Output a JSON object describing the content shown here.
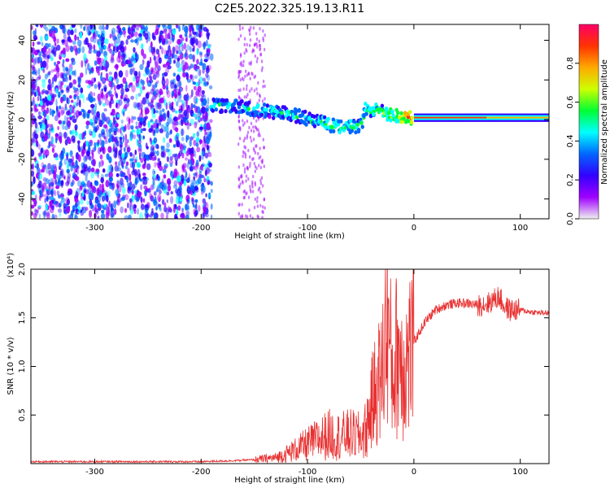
{
  "title": "C2E5.2022.325.19.13.R11",
  "chart_data": [
    {
      "type": "heatmap",
      "xlabel": "Height of straight line (km)",
      "ylabel": "Frequency (Hz)",
      "xlim": [
        -360,
        127
      ],
      "ylim": [
        -50,
        48
      ],
      "xticks": [
        -300,
        -200,
        -100,
        0,
        100
      ],
      "yticks": [
        -40,
        -20,
        0,
        20,
        40
      ],
      "colorbar": {
        "label": "Normalized spectral amplitude",
        "range": [
          0,
          1
        ],
        "ticks": [
          "0.0",
          "0.2",
          "0.4",
          "0.6",
          "0.8"
        ],
        "tick_values": [
          0,
          0.2,
          0.4,
          0.6,
          0.8
        ],
        "colormap": [
          "#f0f0f0",
          "#9f00ff",
          "#3300ff",
          "#0066ff",
          "#00ffff",
          "#00ff33",
          "#ccff00",
          "#ffaa00",
          "#ff3300",
          "#ff0066"
        ]
      },
      "noise_region": {
        "x": [
          -360,
          -190
        ],
        "level": 0.35
      },
      "signal_trace": [
        {
          "x": -190,
          "freq": 7,
          "amplitude": 0.45
        },
        {
          "x": -170,
          "freq": 7,
          "amplitude": 0.45
        },
        {
          "x": -150,
          "freq": 5,
          "amplitude": 0.45
        },
        {
          "x": -130,
          "freq": 4,
          "amplitude": 0.45
        },
        {
          "x": -110,
          "freq": 2,
          "amplitude": 0.45
        },
        {
          "x": -90,
          "freq": -1,
          "amplitude": 0.45
        },
        {
          "x": -70,
          "freq": -4,
          "amplitude": 0.5
        },
        {
          "x": -50,
          "freq": -3,
          "amplitude": 0.5
        },
        {
          "x": -45,
          "freq": 5,
          "amplitude": 0.5
        },
        {
          "x": -30,
          "freq": 4,
          "amplitude": 0.55
        },
        {
          "x": -20,
          "freq": 2,
          "amplitude": 0.6
        },
        {
          "x": 0,
          "freq": 1,
          "amplitude": 0.85
        },
        {
          "x": 50,
          "freq": 1,
          "amplitude": 0.85
        },
        {
          "x": 100,
          "freq": 1,
          "amplitude": 0.8
        },
        {
          "x": 127,
          "freq": 1,
          "amplitude": 0.8
        }
      ]
    },
    {
      "type": "line",
      "xlabel": "Height of straight line (km)",
      "ylabel": "SNR (10 * v/v)",
      "y_multiplier": "(x10⁴)",
      "xlim": [
        -360,
        127
      ],
      "ylim": [
        0,
        2.0
      ],
      "xticks": [
        -300,
        -200,
        -100,
        0,
        100
      ],
      "yticks": [
        0.5,
        1.0,
        1.5,
        2.0
      ],
      "ytick_labels": [
        "0.5",
        "1.0",
        "1.5",
        "2.0"
      ],
      "line_color": "#e83030",
      "series": [
        {
          "x": [
            -360,
            -300,
            -250,
            -200,
            -170,
            -150,
            -130,
            -120,
            -110,
            -100,
            -90,
            -80,
            -70,
            -60,
            -50,
            -45,
            -40,
            -35,
            -30,
            -27,
            -25,
            -23,
            -20,
            -15,
            -10,
            -5,
            0,
            10,
            20,
            30,
            40,
            50,
            60,
            70,
            80,
            85,
            90,
            100,
            110,
            120,
            127
          ],
          "values": [
            0.02,
            0.02,
            0.02,
            0.02,
            0.03,
            0.04,
            0.06,
            0.1,
            0.15,
            0.2,
            0.25,
            0.3,
            0.28,
            0.3,
            0.28,
            0.35,
            0.6,
            0.8,
            0.9,
            1.3,
            1.7,
            1.2,
            0.9,
            1.2,
            1.0,
            1.1,
            1.25,
            1.45,
            1.58,
            1.63,
            1.65,
            1.65,
            1.63,
            1.65,
            1.72,
            1.62,
            1.58,
            1.58,
            1.56,
            1.55,
            1.55
          ]
        }
      ]
    }
  ]
}
